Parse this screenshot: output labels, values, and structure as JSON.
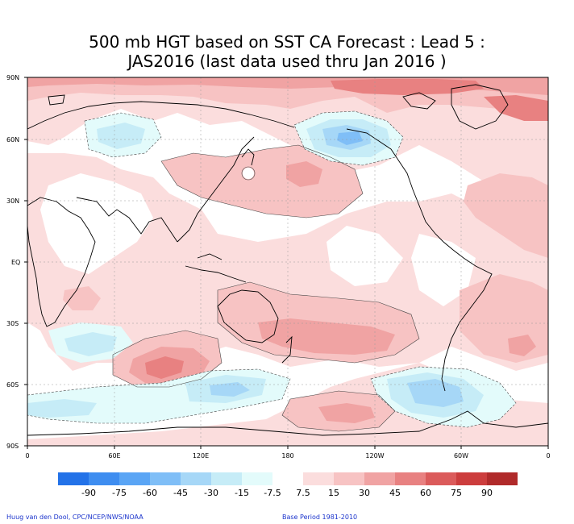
{
  "title_line1": "500 mb HGT based on SST CA Forecast : Lead 5 :",
  "title_line2": "JAS2016 (last data used thru Jan 2016 )",
  "lat_labels": [
    "90N",
    "60N",
    "30N",
    "EQ",
    "30S",
    "60S",
    "90S"
  ],
  "lon_labels": [
    "0",
    "60E",
    "120E",
    "180",
    "120W",
    "60W",
    "0"
  ],
  "colorbar": {
    "labels": [
      "-90",
      "-75",
      "-60",
      "-45",
      "-30",
      "-15",
      "-7.5",
      "7.5",
      "15",
      "30",
      "45",
      "60",
      "75",
      "90"
    ],
    "colors": [
      "#2372e8",
      "#3e8df0",
      "#5aa5f5",
      "#7fbef7",
      "#a6d7f7",
      "#c6ecf7",
      "#e3fbfb",
      "#ffffff",
      "#fbdddd",
      "#f7c3c3",
      "#f0a3a3",
      "#e88181",
      "#db5b5b",
      "#cc3d3d",
      "#b02a2a"
    ]
  },
  "footer_left": "Huug van den Dool, CPC/NCEP/NWS/NOAA",
  "footer_right": "Base Period 1981-2010"
}
